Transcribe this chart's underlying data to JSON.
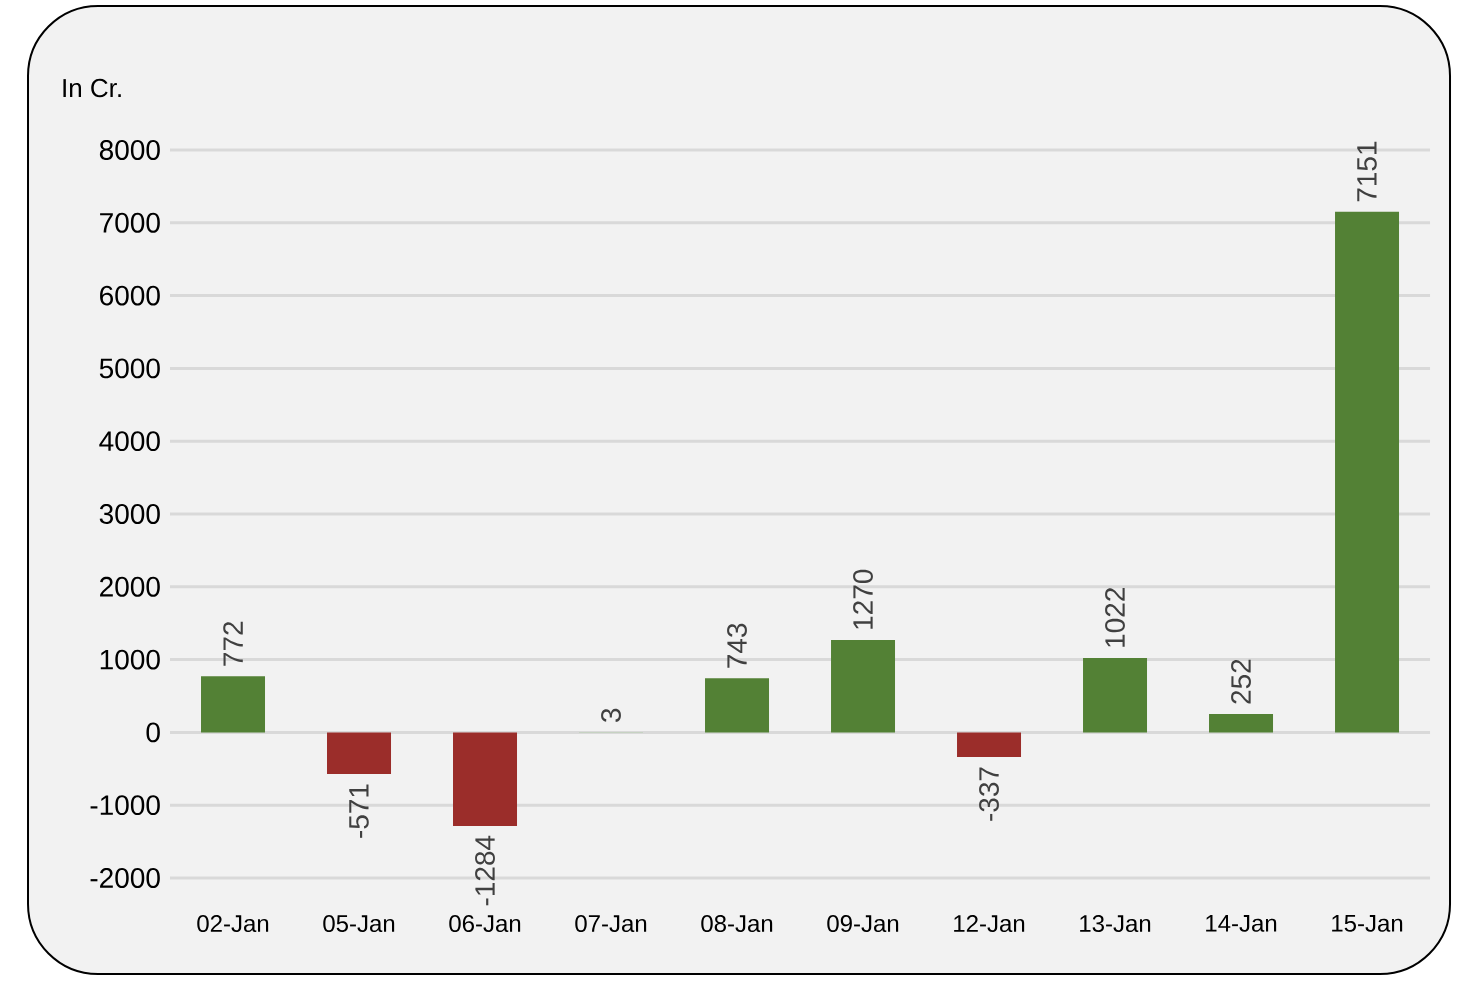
{
  "chart_data": {
    "type": "bar",
    "ylabel": "In Cr.",
    "categories": [
      "02-Jan",
      "05-Jan",
      "06-Jan",
      "07-Jan",
      "08-Jan",
      "09-Jan",
      "12-Jan",
      "13-Jan",
      "14-Jan",
      "15-Jan"
    ],
    "values": [
      772,
      -571,
      -1284,
      3,
      743,
      1270,
      -337,
      1022,
      252,
      7151
    ],
    "colors": [
      "#538135",
      "#9b2d2a",
      "#9b2d2a",
      "#8fbf7f",
      "#538135",
      "#538135",
      "#9b2d2a",
      "#538135",
      "#538135",
      "#538135"
    ],
    "ylim": [
      -2000,
      8000
    ],
    "yticks": [
      -2000,
      -1000,
      0,
      1000,
      2000,
      3000,
      4000,
      5000,
      6000,
      7000,
      8000
    ],
    "grid": "y",
    "data_labels": true
  }
}
